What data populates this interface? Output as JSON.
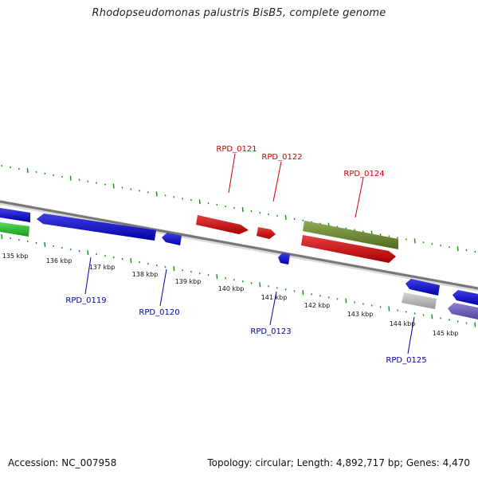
{
  "title": "Rhodopseudomonas palustris BisB5, complete genome",
  "footer": {
    "accession": "Accession: NC_007958",
    "summary": "Topology: circular; Length: 4,892,717 bp; Genes: 4,470"
  },
  "colors": {
    "forward_cds": "#ff1a1a",
    "reverse_cds": "#1a1aff",
    "rna": "#2ecc40",
    "olive": "#6b8e23",
    "grey": "#c8c8c8",
    "slate": "#6a5acd",
    "tick": "#1a8a1a",
    "forward_label": "#cc0000",
    "reverse_label": "#0000aa"
  },
  "scale_labels": [
    "135 kbp",
    "136 kbp",
    "137 kbp",
    "138 kbp",
    "139 kbp",
    "140 kbp",
    "141 kbp",
    "142 kbp",
    "143 kbp",
    "144 kbp",
    "145 kbp"
  ],
  "forward_gene_labels": [
    "RPD_0121",
    "RPD_0122",
    "RPD_0124"
  ],
  "reverse_gene_labels": [
    "RPD_0119",
    "RPD_0120",
    "RPD_0123",
    "RPD_0125"
  ]
}
